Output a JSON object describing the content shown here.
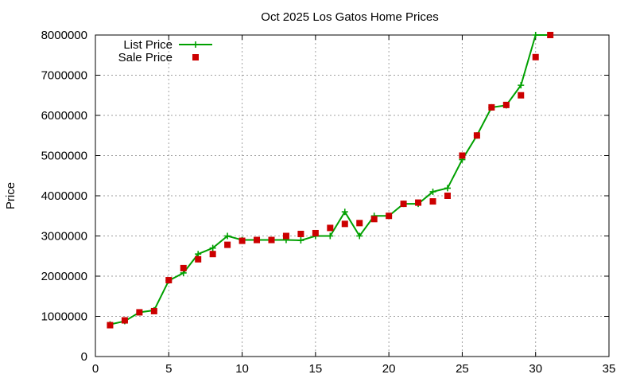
{
  "chart_data": {
    "type": "line",
    "title": "Oct 2025 Los Gatos Home Prices",
    "xlabel": "",
    "ylabel": "Price",
    "xlim": [
      0,
      35
    ],
    "ylim": [
      0,
      8000000
    ],
    "xticks": [
      0,
      5,
      10,
      15,
      20,
      25,
      30,
      35
    ],
    "yticks": [
      0,
      1000000,
      2000000,
      3000000,
      4000000,
      5000000,
      6000000,
      7000000,
      8000000
    ],
    "x_tick_labels": [
      "0",
      "5",
      "10",
      "15",
      "20",
      "25",
      "30",
      "35"
    ],
    "y_tick_labels": [
      "0",
      "1000000",
      "2000000",
      "3000000",
      "4000000",
      "5000000",
      "6000000",
      "7000000",
      "8000000"
    ],
    "grid": true,
    "legend_position": "top-left",
    "series": [
      {
        "name": "List Price",
        "style": "line+cross",
        "color": "#00a000",
        "x": [
          1,
          2,
          3,
          4,
          5,
          6,
          7,
          8,
          9,
          10,
          11,
          12,
          13,
          14,
          15,
          16,
          17,
          18,
          19,
          20,
          21,
          22,
          23,
          24,
          25,
          26,
          27,
          28,
          29,
          30,
          31
        ],
        "y": [
          800000,
          880000,
          1100000,
          1150000,
          1890000,
          2080000,
          2550000,
          2700000,
          3000000,
          2900000,
          2900000,
          2900000,
          2900000,
          2890000,
          3000000,
          3000000,
          3600000,
          3000000,
          3500000,
          3500000,
          3800000,
          3800000,
          4100000,
          4190000,
          4900000,
          5500000,
          6200000,
          6250000,
          6750000,
          8000000,
          8000000
        ]
      },
      {
        "name": "Sale Price",
        "style": "square",
        "color": "#cc0000",
        "x": [
          1,
          2,
          3,
          4,
          5,
          6,
          7,
          8,
          9,
          10,
          11,
          12,
          13,
          14,
          15,
          16,
          17,
          18,
          19,
          20,
          21,
          22,
          23,
          24,
          25,
          26,
          27,
          28,
          29,
          30,
          31
        ],
        "y": [
          780000,
          900000,
          1100000,
          1130000,
          1900000,
          2200000,
          2420000,
          2550000,
          2780000,
          2880000,
          2900000,
          2900000,
          3000000,
          3050000,
          3070000,
          3200000,
          3300000,
          3320000,
          3420000,
          3500000,
          3800000,
          3830000,
          3860000,
          4000000,
          5000000,
          5500000,
          6200000,
          6260000,
          6500000,
          7450000,
          8000000
        ]
      }
    ]
  }
}
